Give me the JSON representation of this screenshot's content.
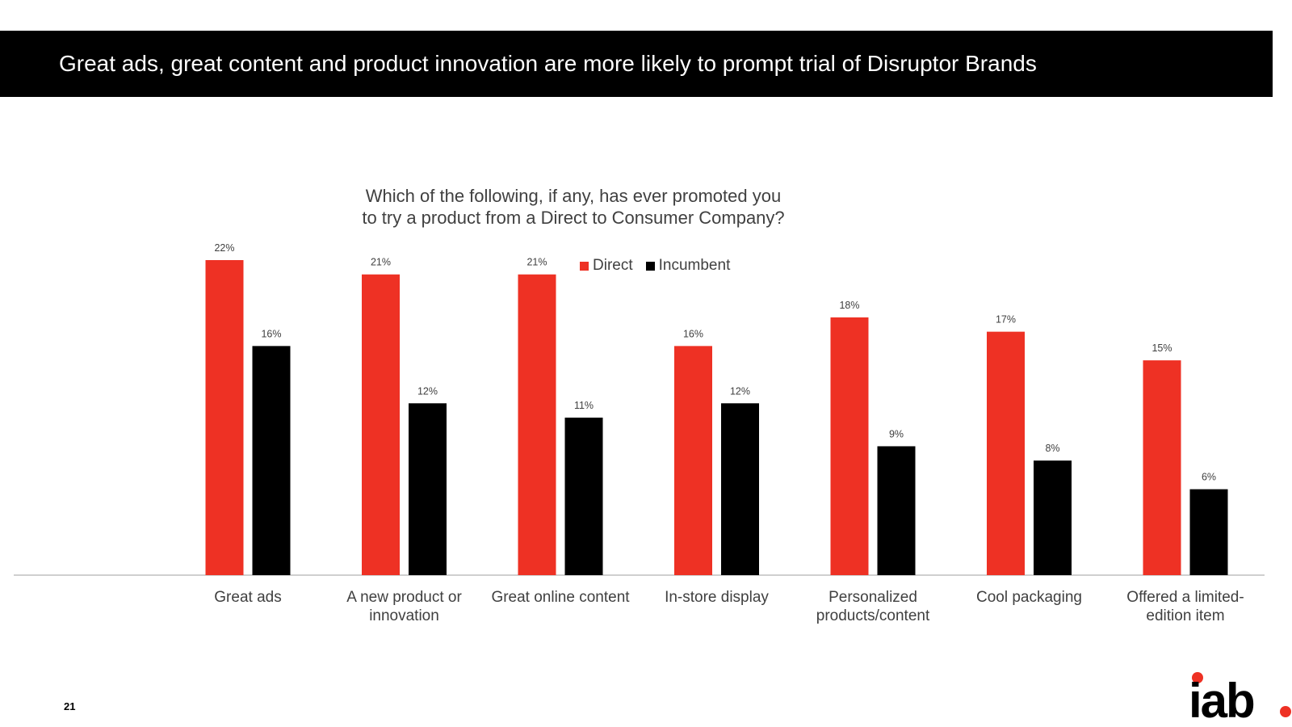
{
  "header": {
    "title": "Great ads, great content and product innovation are more likely to prompt trial of Disruptor Brands"
  },
  "colors": {
    "direct": "#ee3124",
    "incumbent": "#000000",
    "axis": "#bfbfbf",
    "text": "#404040"
  },
  "chart_data": {
    "type": "bar",
    "title": "Which of the following, if any, has ever promoted you to try a product from a Direct to Consumer Company?",
    "title_lines": [
      "Which of the following, if any, has ever promoted you",
      "to try a product from a Direct to Consumer Company?"
    ],
    "categories": [
      [
        "Great ads"
      ],
      [
        "A new product or",
        "innovation"
      ],
      [
        "Great online content"
      ],
      [
        "In-store display"
      ],
      [
        "Personalized",
        "products/content"
      ],
      [
        "Cool packaging"
      ],
      [
        "Offered a limited-",
        "edition item"
      ]
    ],
    "series": [
      {
        "name": "Direct",
        "values": [
          22,
          21,
          21,
          16,
          18,
          17,
          15
        ],
        "labels": [
          "22%",
          "21%",
          "21%",
          "16%",
          "18%",
          "17%",
          "15%"
        ]
      },
      {
        "name": "Incumbent",
        "values": [
          16,
          12,
          11,
          12,
          9,
          8,
          6
        ],
        "labels": [
          "16%",
          "12%",
          "11%",
          "12%",
          "9%",
          "8%",
          "6%"
        ]
      }
    ],
    "ylim": [
      0,
      22
    ],
    "legend_position": "top-center",
    "xlabel": "",
    "ylabel": ""
  },
  "footer": {
    "page_number": "21",
    "logo_text": "iab"
  }
}
